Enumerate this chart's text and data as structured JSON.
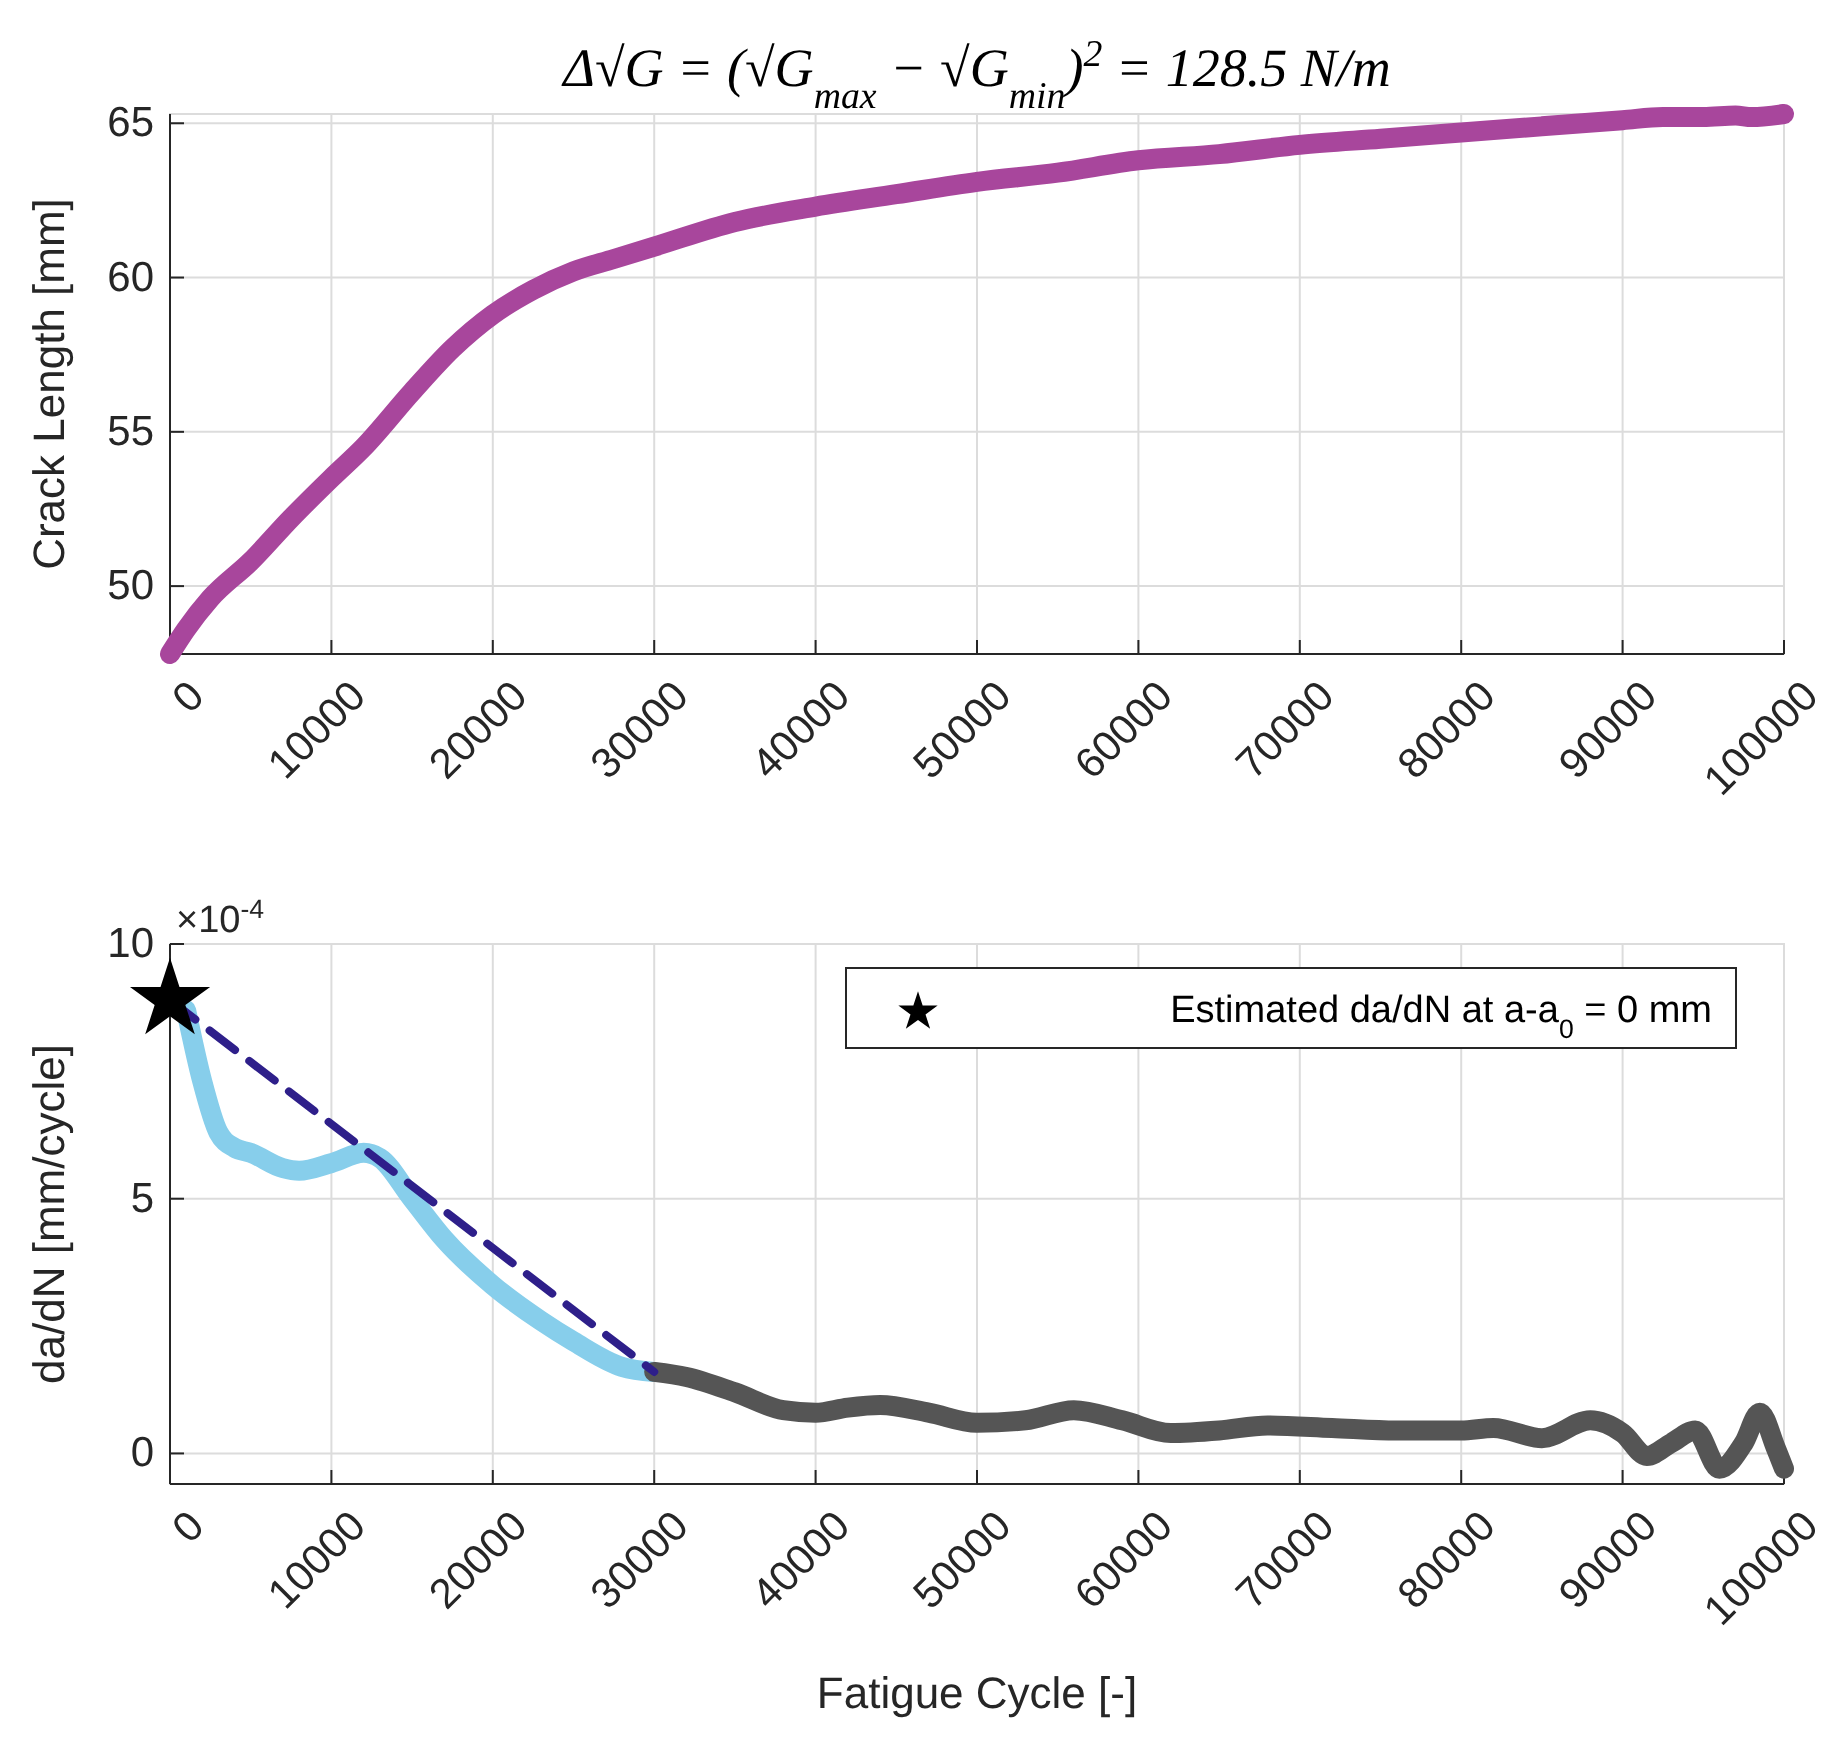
{
  "chart_data": [
    {
      "type": "line",
      "title": "Δ√G = (√G$_{max}$ − √G$_{min}$)$^{2}$ = 128.5 N/m",
      "ylabel": "Crack Length [mm]",
      "xlim": [
        0,
        100000
      ],
      "xticks": [
        0,
        10000,
        20000,
        30000,
        40000,
        50000,
        60000,
        70000,
        80000,
        90000,
        100000
      ],
      "ylim": [
        47.8,
        65.3
      ],
      "yticks": [
        50,
        55,
        60,
        65
      ],
      "grid": true,
      "marker": "none",
      "series": [
        {
          "color": "#a8469c",
          "x": [
            0,
            1000,
            2500,
            5000,
            7500,
            10000,
            12000,
            15000,
            17500,
            20000,
            22500,
            25000,
            27500,
            30000,
            35000,
            40000,
            45000,
            50000,
            55000,
            60000,
            65000,
            70000,
            75000,
            80000,
            85000,
            90000,
            92500,
            95000,
            97000,
            98000,
            100000
          ],
          "values": [
            47.8,
            48.6,
            49.6,
            50.8,
            52.2,
            53.5,
            54.5,
            56.3,
            57.7,
            58.8,
            59.6,
            60.2,
            60.6,
            61.0,
            61.8,
            62.3,
            62.7,
            63.1,
            63.4,
            63.8,
            64.0,
            64.3,
            64.5,
            64.7,
            64.9,
            65.1,
            65.2,
            65.2,
            65.25,
            65.2,
            65.3
          ]
        }
      ]
    },
    {
      "type": "line",
      "xlabel": "Fatigue Cycle [-]",
      "ylabel": "da/dN [mm/cycle]",
      "annotations": [
        "×10$^{-4}$"
      ],
      "xlim": [
        0,
        100000
      ],
      "xticks": [
        0,
        10000,
        20000,
        30000,
        40000,
        50000,
        60000,
        70000,
        80000,
        90000,
        100000
      ],
      "ylim": [
        -0.6,
        10
      ],
      "yticks": [
        0,
        5,
        10
      ],
      "grid": true,
      "legend": "top right",
      "marker": "none",
      "series": [
        {
          "color": "#87ceeb",
          "x": [
            1000,
            2000,
            3000,
            4000,
            5000,
            7000,
            8000,
            10000,
            12000,
            13000,
            15000,
            17000,
            20000,
            23000,
            25000,
            28000,
            30000
          ],
          "values": [
            8.7,
            7.3,
            6.3,
            6.0,
            5.9,
            5.6,
            5.55,
            5.7,
            5.9,
            5.8,
            5.0,
            4.2,
            3.3,
            2.6,
            2.2,
            1.7,
            1.6
          ]
        },
        {
          "color": "#555555",
          "x": [
            30000,
            32000,
            35000,
            38000,
            40000,
            42000,
            44000,
            47000,
            50000,
            53000,
            56000,
            59000,
            62000,
            65000,
            68000,
            72000,
            76000,
            80000,
            82000,
            85000,
            88000,
            90000,
            91500,
            93000,
            94500,
            96000,
            97500,
            98500,
            99500,
            100000
          ],
          "values": [
            1.6,
            1.5,
            1.2,
            0.85,
            0.8,
            0.9,
            0.95,
            0.8,
            0.6,
            0.65,
            0.85,
            0.65,
            0.4,
            0.45,
            0.55,
            0.5,
            0.45,
            0.45,
            0.5,
            0.3,
            0.65,
            0.4,
            -0.05,
            0.2,
            0.45,
            -0.3,
            0.2,
            0.8,
            0.1,
            -0.3
          ]
        },
        {
          "color": "#2e1f8a",
          "line_style": "dashed",
          "x": [
            0,
            30000
          ],
          "values": [
            8.9,
            1.6
          ]
        },
        {
          "type": "scatter",
          "name": "Estimated da/dN at a-a$_{0}$ = 0 mm",
          "color": "#000000",
          "marker": "star",
          "x": [
            0
          ],
          "values": [
            8.9
          ]
        }
      ]
    }
  ]
}
